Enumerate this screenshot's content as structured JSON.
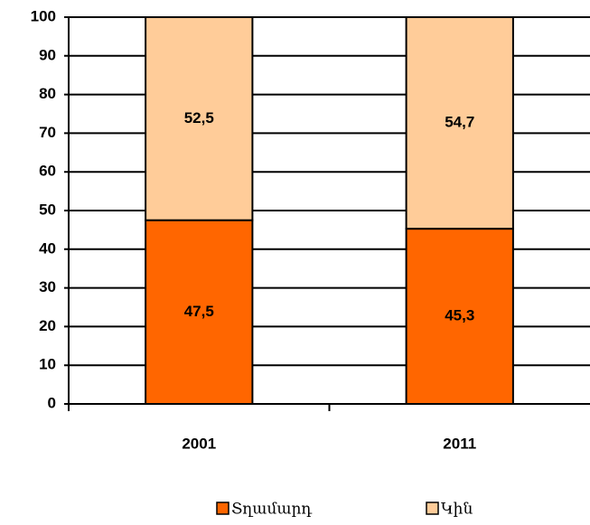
{
  "chart_data": {
    "type": "stacked_bar",
    "categories": [
      "2001",
      "2011"
    ],
    "series": [
      {
        "name": "Տղամարդ",
        "color": "#ff6600",
        "values": [
          47.5,
          45.3
        ],
        "value_labels": [
          "47,5",
          "45,3"
        ]
      },
      {
        "name": "Կին",
        "color": "#ffcc99",
        "values": [
          52.5,
          54.7
        ],
        "value_labels": [
          "52,5",
          "54,7"
        ]
      }
    ],
    "ylim": [
      0,
      100
    ],
    "yticks": [
      0,
      10,
      20,
      30,
      40,
      50,
      60,
      70,
      80,
      90,
      100
    ],
    "grid": true,
    "legend": "bottom"
  }
}
